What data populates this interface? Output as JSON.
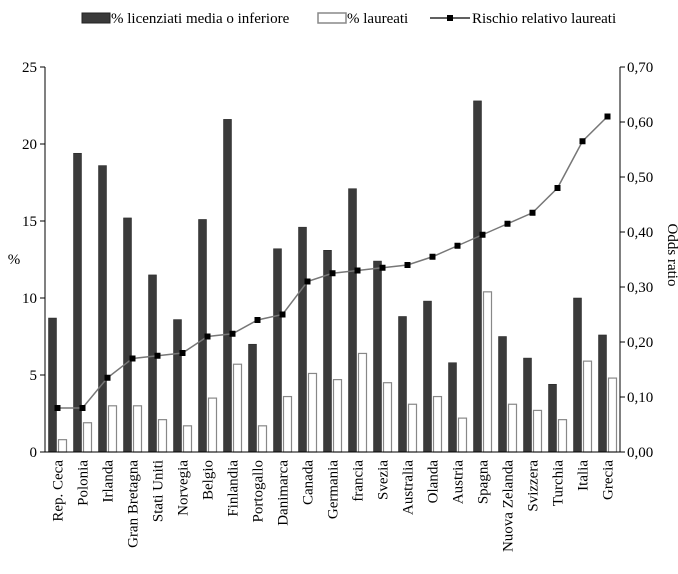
{
  "chart_data": {
    "type": "bar",
    "categories": [
      "Rep. Ceca",
      "Polonia",
      "Irlanda",
      "Gran Bretagna",
      "Stati Uniti",
      "Norvegia",
      "Belgio",
      "Finlandia",
      "Portogallo",
      "Danimarca",
      "Canada",
      "Germania",
      "francia",
      "Svezia",
      "Australia",
      "Olanda",
      "Austria",
      "Spagna",
      "Nuova Zelanda",
      "Svizzera",
      "Turchia",
      "Italia",
      "Grecia"
    ],
    "series": [
      {
        "name": "% licenziati media o inferiore",
        "kind": "bar",
        "axis": "left",
        "color": "#3a3a3a",
        "values": [
          8.7,
          19.4,
          18.6,
          15.2,
          11.5,
          8.6,
          15.1,
          21.6,
          7.0,
          13.2,
          14.6,
          13.1,
          17.1,
          12.4,
          8.8,
          9.8,
          5.8,
          22.8,
          7.5,
          6.1,
          4.4,
          10.0,
          7.6
        ]
      },
      {
        "name": "% laureati",
        "kind": "bar",
        "axis": "left",
        "color": "#ffffff",
        "values": [
          0.8,
          1.9,
          3.0,
          3.0,
          2.1,
          1.7,
          3.5,
          5.7,
          1.7,
          3.6,
          5.1,
          4.7,
          6.4,
          4.5,
          3.1,
          3.6,
          2.2,
          10.4,
          3.1,
          2.7,
          2.1,
          5.9,
          4.8
        ]
      },
      {
        "name": "Rischio relativo laureati",
        "kind": "line",
        "axis": "right",
        "color": "#000000",
        "values": [
          0.08,
          0.08,
          0.135,
          0.17,
          0.175,
          0.18,
          0.21,
          0.215,
          0.24,
          0.25,
          0.31,
          0.325,
          0.33,
          0.335,
          0.34,
          0.355,
          0.375,
          0.395,
          0.415,
          0.435,
          0.48,
          0.565,
          0.61
        ]
      }
    ],
    "ylabel_left": "%",
    "ylabel_right": "Odds ratio",
    "ylim_left": [
      0,
      25
    ],
    "yticks_left": [
      "0",
      "5",
      "10",
      "15",
      "20",
      "25"
    ],
    "ylim_right": [
      0,
      0.7
    ],
    "yticks_right": [
      "0,00",
      "0,10",
      "0,20",
      "0,30",
      "0,40",
      "0,50",
      "0,60",
      "0,70"
    ],
    "grid": false,
    "legend_placement": "top"
  }
}
